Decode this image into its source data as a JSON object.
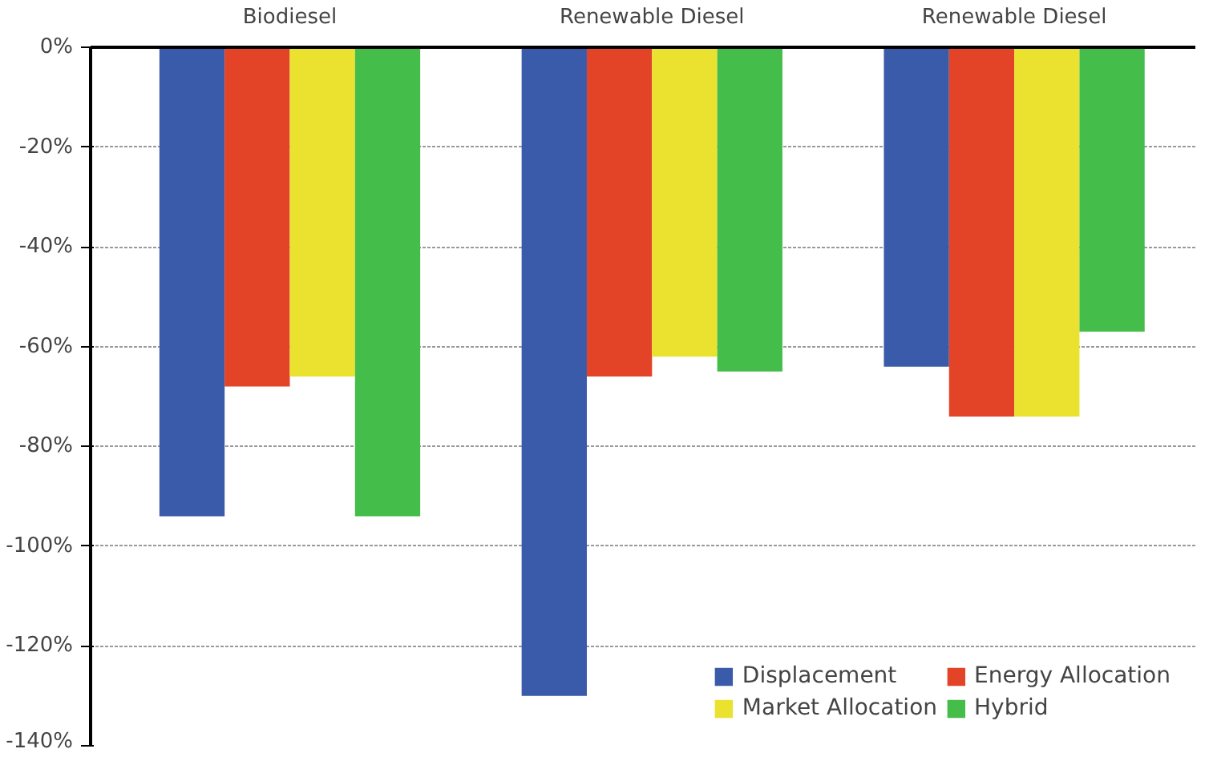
{
  "chart_data": {
    "type": "bar",
    "categories": [
      "Biodiesel",
      "Renewable Diesel",
      "Renewable Diesel"
    ],
    "series": [
      {
        "name": "Displacement",
        "color": "#3a5ba9",
        "values": [
          -94,
          -130,
          -64
        ]
      },
      {
        "name": "Energy Allocation",
        "color": "#e34326",
        "values": [
          -68,
          -66,
          -74
        ]
      },
      {
        "name": "Market Allocation",
        "color": "#ebe12f",
        "values": [
          -66,
          -62,
          -74
        ]
      },
      {
        "name": "Hybrid",
        "color": "#45bd4a",
        "values": [
          -94,
          -65,
          -57
        ]
      }
    ],
    "ylim": [
      -140,
      0
    ],
    "yticks": [
      {
        "value": 0,
        "label": "0%"
      },
      {
        "value": -20,
        "label": "-20%"
      },
      {
        "value": -40,
        "label": "-40%"
      },
      {
        "value": -60,
        "label": "-60%"
      },
      {
        "value": -80,
        "label": "-80%"
      },
      {
        "value": -100,
        "label": "-100%"
      },
      {
        "value": -120,
        "label": "-120%"
      },
      {
        "value": -140,
        "label": "-140%"
      }
    ],
    "grid": "y",
    "legend": "bottom right"
  }
}
